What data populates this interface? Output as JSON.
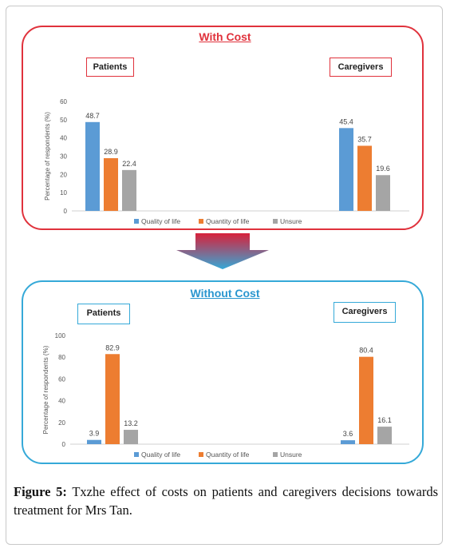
{
  "caption": {
    "label": "Figure 5:",
    "text": " Txzhe effect of costs on patients and caregivers decisions towards treatment for Mrs Tan."
  },
  "arrow_colors": {
    "top": "#d8203a",
    "bottom": "#35a9d8"
  },
  "chart_data": [
    {
      "type": "bar",
      "title": "With Cost",
      "ylabel": "Percentage of respondents (%)",
      "xlabel": "",
      "ylim": [
        0,
        60
      ],
      "yticks": [
        "0",
        "10",
        "20",
        "30",
        "40",
        "50",
        "60"
      ],
      "grid": false,
      "legend_position": "bottom",
      "groups": [
        "Patients",
        "Caregivers"
      ],
      "series": [
        {
          "name": "Quality of life",
          "color": "#5b9bd5",
          "values": [
            48.7,
            45.4
          ],
          "labels": [
            "48.7",
            "45.4"
          ]
        },
        {
          "name": "Quantity of life",
          "color": "#ed7d31",
          "values": [
            28.9,
            35.7
          ],
          "labels": [
            "28.9",
            "35.7"
          ]
        },
        {
          "name": "Unsure",
          "color": "#a5a5a5",
          "values": [
            22.4,
            19.6
          ],
          "labels": [
            "22.4",
            "19.6"
          ]
        }
      ]
    },
    {
      "type": "bar",
      "title": "Without Cost",
      "ylabel": "Percentage of respondents (%)",
      "xlabel": "",
      "ylim": [
        0,
        100
      ],
      "yticks": [
        "0",
        "20",
        "40",
        "60",
        "80",
        "100"
      ],
      "grid": false,
      "legend_position": "bottom",
      "groups": [
        "Patients",
        "Caregivers"
      ],
      "series": [
        {
          "name": "Quality of life",
          "color": "#5b9bd5",
          "values": [
            3.9,
            3.6
          ],
          "labels": [
            "3.9",
            "3.6"
          ]
        },
        {
          "name": "Quantity of life",
          "color": "#ed7d31",
          "values": [
            82.9,
            80.4
          ],
          "labels": [
            "82.9",
            "80.4"
          ]
        },
        {
          "name": "Unsure",
          "color": "#a5a5a5",
          "values": [
            13.2,
            16.1
          ],
          "labels": [
            "13.2",
            "16.1"
          ]
        }
      ]
    }
  ]
}
